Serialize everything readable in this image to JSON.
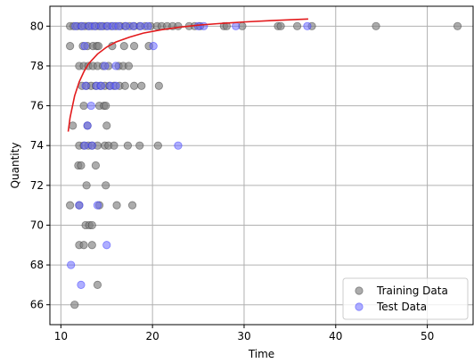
{
  "chart_data": {
    "type": "scatter",
    "title": "",
    "xlabel": "Time",
    "ylabel": "Quantity",
    "xlim": [
      8.8,
      55
    ],
    "ylim": [
      65,
      81
    ],
    "xticks": [
      10,
      20,
      30,
      40,
      50
    ],
    "yticks": [
      66,
      68,
      70,
      72,
      74,
      76,
      78,
      80
    ],
    "grid": true,
    "legend_position": "bottom-right",
    "colors": {
      "training": "#808080",
      "test": "#6b6bff",
      "fit": "#e31a1c",
      "grid": "#b0b0b0",
      "axis": "#000000"
    },
    "series": [
      {
        "name": "Training Data",
        "kind": "scatter",
        "color": "#808080",
        "points": [
          [
            11.0,
            80
          ],
          [
            11.4,
            80
          ],
          [
            11.8,
            80
          ],
          [
            12.2,
            80
          ],
          [
            12.6,
            80
          ],
          [
            13.0,
            80
          ],
          [
            13.4,
            80
          ],
          [
            13.8,
            80
          ],
          [
            14.2,
            80
          ],
          [
            14.6,
            80
          ],
          [
            15.0,
            80
          ],
          [
            15.5,
            80
          ],
          [
            16.0,
            80
          ],
          [
            16.5,
            80
          ],
          [
            17.0,
            80
          ],
          [
            17.5,
            80
          ],
          [
            18.0,
            80
          ],
          [
            18.6,
            80
          ],
          [
            19.2,
            80
          ],
          [
            19.8,
            80
          ],
          [
            20.5,
            80
          ],
          [
            21.0,
            80
          ],
          [
            21.6,
            80
          ],
          [
            22.2,
            80
          ],
          [
            22.8,
            80
          ],
          [
            24.0,
            80
          ],
          [
            24.6,
            80
          ],
          [
            25.2,
            80
          ],
          [
            27.8,
            80
          ],
          [
            28.1,
            80
          ],
          [
            29.8,
            80
          ],
          [
            33.7,
            80
          ],
          [
            34.0,
            80
          ],
          [
            35.8,
            80
          ],
          [
            37.4,
            80
          ],
          [
            44.4,
            80
          ],
          [
            53.3,
            80
          ],
          [
            11.0,
            79
          ],
          [
            12.4,
            79
          ],
          [
            12.9,
            79
          ],
          [
            13.5,
            79
          ],
          [
            13.9,
            79
          ],
          [
            14.1,
            79
          ],
          [
            15.6,
            79
          ],
          [
            16.9,
            79
          ],
          [
            18.0,
            79
          ],
          [
            19.6,
            79
          ],
          [
            12.0,
            78
          ],
          [
            12.5,
            78
          ],
          [
            13.0,
            78
          ],
          [
            13.5,
            78
          ],
          [
            14.0,
            78
          ],
          [
            14.6,
            78
          ],
          [
            15.2,
            78
          ],
          [
            16.3,
            78
          ],
          [
            16.8,
            78
          ],
          [
            17.4,
            78
          ],
          [
            12.3,
            77
          ],
          [
            12.8,
            77
          ],
          [
            13.3,
            77
          ],
          [
            13.8,
            77
          ],
          [
            14.3,
            77
          ],
          [
            14.8,
            77
          ],
          [
            15.3,
            77
          ],
          [
            15.8,
            77
          ],
          [
            16.4,
            77
          ],
          [
            17.0,
            77
          ],
          [
            18.0,
            77
          ],
          [
            18.8,
            77
          ],
          [
            20.7,
            77
          ],
          [
            12.5,
            76
          ],
          [
            14.2,
            76
          ],
          [
            14.7,
            76
          ],
          [
            14.9,
            76
          ],
          [
            11.3,
            75
          ],
          [
            12.9,
            75
          ],
          [
            15.0,
            75
          ],
          [
            12.0,
            74
          ],
          [
            12.5,
            74
          ],
          [
            13.0,
            74
          ],
          [
            13.4,
            74
          ],
          [
            14.0,
            74
          ],
          [
            14.8,
            74
          ],
          [
            15.2,
            74
          ],
          [
            15.8,
            74
          ],
          [
            17.3,
            74
          ],
          [
            18.6,
            74
          ],
          [
            20.6,
            74
          ],
          [
            11.9,
            73
          ],
          [
            12.2,
            73
          ],
          [
            13.8,
            73
          ],
          [
            12.8,
            72
          ],
          [
            14.9,
            72
          ],
          [
            11.0,
            71
          ],
          [
            12.0,
            71
          ],
          [
            14.2,
            71
          ],
          [
            16.1,
            71
          ],
          [
            17.8,
            71
          ],
          [
            12.7,
            70
          ],
          [
            13.1,
            70
          ],
          [
            13.4,
            70
          ],
          [
            12.0,
            69
          ],
          [
            12.5,
            69
          ],
          [
            13.4,
            69
          ],
          [
            14.0,
            67
          ],
          [
            11.5,
            66
          ]
        ]
      },
      {
        "name": "Test Data",
        "kind": "scatter",
        "color": "#6b6bff",
        "points": [
          [
            11.6,
            80
          ],
          [
            12.3,
            80
          ],
          [
            13.1,
            80
          ],
          [
            13.7,
            80
          ],
          [
            14.4,
            80
          ],
          [
            15.1,
            80
          ],
          [
            15.7,
            80
          ],
          [
            16.3,
            80
          ],
          [
            17.1,
            80
          ],
          [
            17.9,
            80
          ],
          [
            18.7,
            80
          ],
          [
            19.5,
            80
          ],
          [
            25.0,
            80
          ],
          [
            25.6,
            80
          ],
          [
            29.1,
            80
          ],
          [
            36.9,
            80
          ],
          [
            12.6,
            79
          ],
          [
            20.1,
            79
          ],
          [
            14.8,
            78
          ],
          [
            16.0,
            78
          ],
          [
            12.7,
            77
          ],
          [
            13.9,
            77
          ],
          [
            14.4,
            77
          ],
          [
            15.4,
            77
          ],
          [
            16.0,
            77
          ],
          [
            13.3,
            76
          ],
          [
            12.9,
            75
          ],
          [
            12.6,
            74
          ],
          [
            13.4,
            74
          ],
          [
            22.8,
            74
          ],
          [
            12.0,
            71
          ],
          [
            14.0,
            71
          ],
          [
            15.0,
            69
          ],
          [
            11.1,
            68
          ],
          [
            12.2,
            67
          ]
        ]
      },
      {
        "name": "",
        "kind": "line",
        "color": "#e31a1c",
        "points": [
          [
            10.8,
            74.7
          ],
          [
            11.0,
            75.4
          ],
          [
            11.5,
            76.5
          ],
          [
            12.0,
            77.2
          ],
          [
            12.5,
            77.7
          ],
          [
            13.0,
            78.1
          ],
          [
            14.0,
            78.6
          ],
          [
            15.0,
            78.95
          ],
          [
            16.0,
            79.2
          ],
          [
            17.5,
            79.45
          ],
          [
            19.0,
            79.65
          ],
          [
            21.0,
            79.82
          ],
          [
            23.0,
            79.95
          ],
          [
            25.0,
            80.05
          ],
          [
            27.0,
            80.12
          ],
          [
            30.0,
            80.21
          ],
          [
            33.0,
            80.28
          ],
          [
            35.0,
            80.32
          ],
          [
            37.0,
            80.36
          ]
        ]
      }
    ],
    "legend": {
      "entries": [
        {
          "label": "Training Data",
          "color": "#808080"
        },
        {
          "label": "Test Data",
          "color": "#6b6bff"
        }
      ]
    }
  }
}
